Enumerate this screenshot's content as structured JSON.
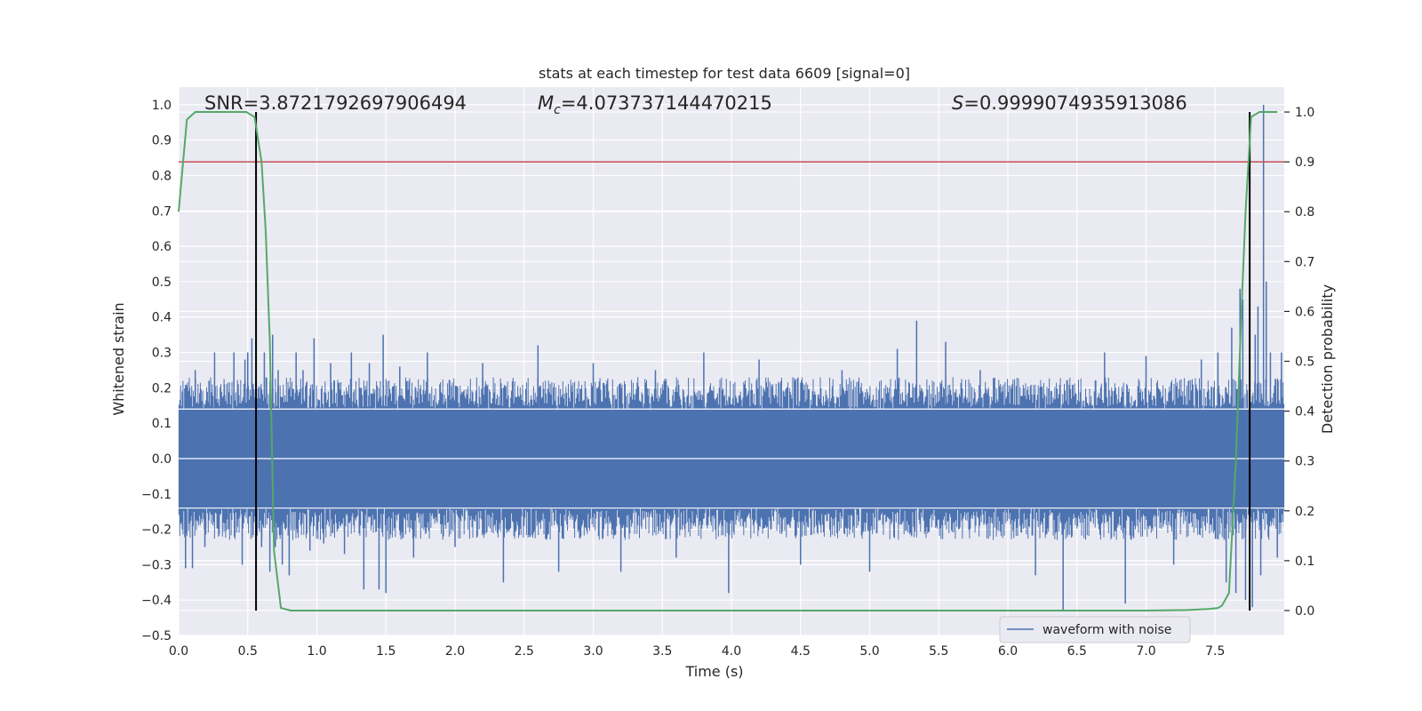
{
  "chart_data": {
    "type": "line",
    "title": "stats at each timestep for test data 6609 [signal=0]",
    "xlabel": "Time (s)",
    "ylabel_left": "Whitened strain",
    "ylabel_right": "Detection probability",
    "xlim": [
      0.0,
      8.0
    ],
    "ylim_left": [
      -0.5,
      1.05
    ],
    "ylim_right": [
      -0.05,
      1.05
    ],
    "x_ticks": [
      0.0,
      0.5,
      1.0,
      1.5,
      2.0,
      2.5,
      3.0,
      3.5,
      4.0,
      4.5,
      5.0,
      5.5,
      6.0,
      6.5,
      7.0,
      7.5
    ],
    "x_tick_labels": [
      "0.0",
      "0.5",
      "1.0",
      "1.5",
      "2.0",
      "2.5",
      "3.0",
      "3.5",
      "4.0",
      "4.5",
      "5.0",
      "5.5",
      "6.0",
      "6.5",
      "7.0",
      "7.5"
    ],
    "y_left_ticks": [
      -0.5,
      -0.4,
      -0.3,
      -0.2,
      -0.1,
      0.0,
      0.1,
      0.2,
      0.3,
      0.4,
      0.5,
      0.6,
      0.7,
      0.8,
      0.9,
      1.0
    ],
    "y_left_tick_labels": [
      "−0.5",
      "−0.4",
      "−0.3",
      "−0.2",
      "−0.1",
      "0.0",
      "0.1",
      "0.2",
      "0.3",
      "0.4",
      "0.5",
      "0.6",
      "0.7",
      "0.8",
      "0.9",
      "1.0"
    ],
    "y_right_ticks": [
      0.0,
      0.1,
      0.2,
      0.3,
      0.4,
      0.5,
      0.6,
      0.7,
      0.8,
      0.9,
      1.0
    ],
    "y_right_tick_labels": [
      "0.0",
      "0.1",
      "0.2",
      "0.3",
      "0.4",
      "0.5",
      "0.6",
      "0.7",
      "0.8",
      "0.9",
      "1.0"
    ],
    "annotations": {
      "snr": "SNR=3.8721792697906494",
      "mc_label": "M",
      "mc_sub": "c",
      "mc_value": "=4.073737144470215",
      "s_label": "S",
      "s_value": "=0.9999074935913086"
    },
    "threshold": 0.9,
    "vertical_lines": [
      0.56,
      7.75
    ],
    "waveform": {
      "name": "waveform with noise",
      "band": 0.14,
      "spikes": [
        {
          "x": 0.03,
          "y": 0.17
        },
        {
          "x": 0.05,
          "y": -0.31
        },
        {
          "x": 0.08,
          "y": 0.2
        },
        {
          "x": 0.1,
          "y": -0.31
        },
        {
          "x": 0.12,
          "y": 0.25
        },
        {
          "x": 0.16,
          "y": 0.19
        },
        {
          "x": 0.19,
          "y": -0.25
        },
        {
          "x": 0.22,
          "y": 0.22
        },
        {
          "x": 0.26,
          "y": 0.3
        },
        {
          "x": 0.29,
          "y": -0.22
        },
        {
          "x": 0.33,
          "y": 0.21
        },
        {
          "x": 0.36,
          "y": -0.2
        },
        {
          "x": 0.4,
          "y": 0.3
        },
        {
          "x": 0.43,
          "y": 0.21
        },
        {
          "x": 0.46,
          "y": -0.3
        },
        {
          "x": 0.48,
          "y": 0.28
        },
        {
          "x": 0.5,
          "y": 0.3
        },
        {
          "x": 0.53,
          "y": 0.34
        },
        {
          "x": 0.56,
          "y": 0.33
        },
        {
          "x": 0.6,
          "y": -0.25
        },
        {
          "x": 0.62,
          "y": 0.3
        },
        {
          "x": 0.66,
          "y": -0.32
        },
        {
          "x": 0.68,
          "y": 0.35
        },
        {
          "x": 0.7,
          "y": -0.25
        },
        {
          "x": 0.72,
          "y": 0.25
        },
        {
          "x": 0.75,
          "y": -0.3
        },
        {
          "x": 0.8,
          "y": -0.33
        },
        {
          "x": 0.85,
          "y": 0.3
        },
        {
          "x": 0.9,
          "y": 0.25
        },
        {
          "x": 0.95,
          "y": -0.26
        },
        {
          "x": 0.98,
          "y": 0.34
        },
        {
          "x": 1.05,
          "y": -0.24
        },
        {
          "x": 1.1,
          "y": 0.27
        },
        {
          "x": 1.2,
          "y": -0.27
        },
        {
          "x": 1.25,
          "y": 0.3
        },
        {
          "x": 1.34,
          "y": -0.37
        },
        {
          "x": 1.38,
          "y": 0.27
        },
        {
          "x": 1.45,
          "y": -0.37
        },
        {
          "x": 1.48,
          "y": 0.35
        },
        {
          "x": 1.5,
          "y": -0.38
        },
        {
          "x": 1.6,
          "y": 0.26
        },
        {
          "x": 1.7,
          "y": -0.28
        },
        {
          "x": 1.8,
          "y": 0.3
        },
        {
          "x": 2.0,
          "y": -0.25
        },
        {
          "x": 2.2,
          "y": 0.27
        },
        {
          "x": 2.35,
          "y": -0.35
        },
        {
          "x": 2.6,
          "y": 0.32
        },
        {
          "x": 2.75,
          "y": -0.32
        },
        {
          "x": 3.0,
          "y": 0.27
        },
        {
          "x": 3.2,
          "y": -0.32
        },
        {
          "x": 3.45,
          "y": 0.25
        },
        {
          "x": 3.6,
          "y": -0.28
        },
        {
          "x": 3.8,
          "y": 0.3
        },
        {
          "x": 3.98,
          "y": -0.38
        },
        {
          "x": 4.2,
          "y": 0.28
        },
        {
          "x": 4.5,
          "y": -0.3
        },
        {
          "x": 4.8,
          "y": 0.25
        },
        {
          "x": 5.0,
          "y": -0.32
        },
        {
          "x": 5.2,
          "y": 0.31
        },
        {
          "x": 5.34,
          "y": 0.39
        },
        {
          "x": 5.55,
          "y": 0.33
        },
        {
          "x": 5.8,
          "y": 0.25
        },
        {
          "x": 6.2,
          "y": -0.33
        },
        {
          "x": 6.4,
          "y": -0.43
        },
        {
          "x": 6.7,
          "y": 0.3
        },
        {
          "x": 6.85,
          "y": -0.41
        },
        {
          "x": 7.0,
          "y": 0.29
        },
        {
          "x": 7.2,
          "y": -0.3
        },
        {
          "x": 7.4,
          "y": 0.28
        },
        {
          "x": 7.52,
          "y": 0.3
        },
        {
          "x": 7.58,
          "y": -0.35
        },
        {
          "x": 7.62,
          "y": 0.37
        },
        {
          "x": 7.65,
          "y": -0.38
        },
        {
          "x": 7.68,
          "y": 0.48
        },
        {
          "x": 7.7,
          "y": 0.45
        },
        {
          "x": 7.72,
          "y": -0.4
        },
        {
          "x": 7.75,
          "y": 0.4
        },
        {
          "x": 7.77,
          "y": -0.42
        },
        {
          "x": 7.79,
          "y": 0.35
        },
        {
          "x": 7.81,
          "y": 0.43
        },
        {
          "x": 7.83,
          "y": -0.33
        },
        {
          "x": 7.85,
          "y": 1.0
        },
        {
          "x": 7.87,
          "y": 0.5
        },
        {
          "x": 7.9,
          "y": 0.3
        },
        {
          "x": 7.95,
          "y": -0.28
        },
        {
          "x": 7.98,
          "y": 0.3
        }
      ]
    },
    "detection_probability": {
      "x": [
        0.0,
        0.06,
        0.12,
        0.18,
        0.25,
        0.31,
        0.37,
        0.43,
        0.49,
        0.55,
        0.6,
        0.63,
        0.66,
        0.69,
        0.74,
        0.81,
        0.9,
        1.5,
        2.5,
        3.5,
        4.5,
        5.5,
        6.5,
        7.0,
        7.3,
        7.45,
        7.52,
        7.55,
        7.6,
        7.65,
        7.69,
        7.72,
        7.76,
        7.82,
        7.88,
        7.95
      ],
      "values": [
        0.8,
        0.985,
        1.0,
        1.0,
        1.0,
        1.0,
        1.0,
        1.0,
        1.0,
        0.99,
        0.9,
        0.76,
        0.54,
        0.12,
        0.005,
        0.0,
        0.0,
        0.0,
        0.0,
        0.0,
        0.0,
        0.0,
        0.0,
        0.0,
        0.001,
        0.003,
        0.005,
        0.01,
        0.035,
        0.3,
        0.6,
        0.8,
        0.99,
        1.0,
        1.0,
        1.0
      ]
    }
  }
}
